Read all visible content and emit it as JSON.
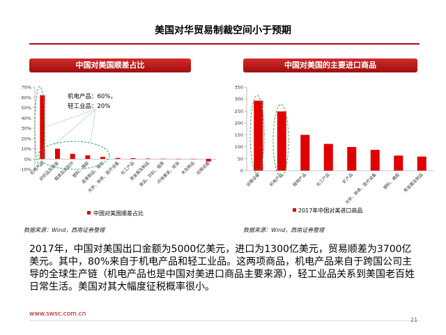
{
  "title": "美国对华贸易制裁空间小于预期",
  "chart_data": [
    {
      "type": "bar",
      "title": "中国对美国顺差占比",
      "categories": [
        "机电产品",
        "纺织品及服装",
        "鞋类及其配件",
        "塑料、橡胶",
        "皮革制品、箱包",
        "光学、钟表、医疗设备",
        "化工产品",
        "贵金属及制品",
        "食品、饮料、烟草",
        "纤维素浆、纸张",
        "木及制品",
        "运输设备"
      ],
      "values": [
        62,
        10,
        5,
        3.5,
        2,
        1,
        0.8,
        0.5,
        0.3,
        0.2,
        0.2,
        -2.5
      ],
      "ylim": [
        -10,
        70
      ],
      "yticks": [
        "-10%",
        "0%",
        "10%",
        "20%",
        "30%",
        "40%",
        "50%",
        "60%",
        "70%"
      ],
      "annotation": [
        "机电产品：60%，",
        "轻工业品：20%"
      ],
      "legend": "中国对美国顺差占比",
      "color": "#e00000"
    },
    {
      "type": "bar",
      "title": "中国对美国的主要进口商品",
      "categories": [
        "运输设备",
        "机电产品",
        "植物产品",
        "化工产品",
        "矿产品",
        "光学、钟表、医疗设备",
        "塑料、橡胶",
        "贵金属及制品"
      ],
      "values": [
        293,
        248,
        150,
        112,
        99,
        87,
        63,
        59
      ],
      "ylim": [
        0,
        350
      ],
      "yticks": [
        "0",
        "50",
        "100",
        "150",
        "200",
        "250",
        "300",
        "350"
      ],
      "legend": "2017年中国对美进口商品",
      "color": "#e00000"
    }
  ],
  "source_left": "数据来源：Wind，西南证券整理",
  "source_right": "数据来源：Wind，西南证券整理",
  "body_text": "2017年，中国对美国出口金额为5000亿美元，进口为1300亿美元，贸易顺差为3700亿美元。其中，80%来自于机电产品和轻工业品。这两项商品，机电产品来自于跨国公司主导的全球生产链（机电产品也是中国对美进口商品主要来源），轻工业品关系到美国老百姓日常生活。美国对其大幅度征税概率很小。",
  "url": "www.swsc.com.cn",
  "page_number": "21"
}
